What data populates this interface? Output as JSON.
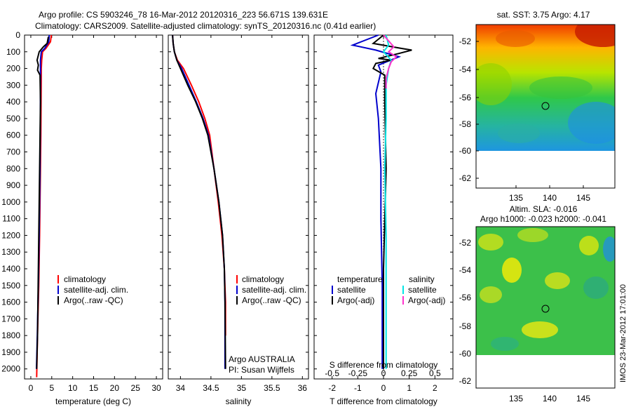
{
  "title_line1": "Argo profile: CS 5903246_78 16-Mar-2012 20120316_223 56.671S 139.631E",
  "title_line2": "Climatology: CARS2009. Satellite-adjusted climatology: synTS_20120316.nc (0.41d earlier)",
  "colors": {
    "climatology": "#ff0000",
    "satellite": "#0000cc",
    "argo": "#000000",
    "sat_salinity": "#00e5e5",
    "argo_salinity": "#ff33cc"
  },
  "chart_data": [
    {
      "type": "line",
      "xlabel": "temperature (deg C)",
      "ylabel": "",
      "xlim": [
        -1.5,
        31.5
      ],
      "ylim": [
        2060,
        0
      ],
      "xticks": [
        0,
        5,
        10,
        15,
        20,
        25,
        30
      ],
      "yticks": [
        0,
        100,
        200,
        300,
        400,
        500,
        600,
        700,
        800,
        900,
        1000,
        1100,
        1200,
        1300,
        1400,
        1500,
        1600,
        1700,
        1800,
        1900,
        2000
      ],
      "legend": [
        "climatology",
        "satellite-adj. clim.",
        "Argo(..raw -QC)"
      ],
      "series": [
        {
          "name": "climatology",
          "color_key": "climatology",
          "x": [
            4.9,
            4.7,
            3.6,
            2.8,
            2.6,
            2.5,
            2.5,
            2.45,
            2.4,
            2.3,
            2.2,
            2.1,
            1.9,
            1.6,
            1.4
          ],
          "y": [
            0,
            40,
            80,
            100,
            150,
            200,
            250,
            400,
            600,
            800,
            1000,
            1200,
            1500,
            1800,
            2050
          ]
        },
        {
          "name": "satellite-adj. clim.",
          "color_key": "satellite",
          "x": [
            4.4,
            4.3,
            3.3,
            2.5,
            2.3,
            2.3,
            2.3,
            2.3,
            2.25,
            2.2,
            2.1,
            2.0,
            1.8,
            1.55,
            1.35
          ],
          "y": [
            0,
            40,
            80,
            100,
            150,
            200,
            250,
            400,
            600,
            800,
            1000,
            1200,
            1500,
            1800,
            2000
          ]
        },
        {
          "name": "Argo(..raw -QC)",
          "color_key": "argo",
          "x": [
            4.2,
            3.9,
            3.0,
            2.0,
            1.5,
            1.8,
            1.6,
            2.2,
            2.3,
            2.2,
            2.1,
            2.0,
            1.8,
            1.6,
            1.4
          ],
          "y": [
            10,
            50,
            70,
            100,
            150,
            180,
            210,
            240,
            400,
            600,
            800,
            1000,
            1400,
            1800,
            2000
          ]
        }
      ]
    },
    {
      "type": "line",
      "xlabel": "salinity",
      "ylabel": "",
      "xlim": [
        33.8,
        36.1
      ],
      "ylim": [
        2060,
        0
      ],
      "xticks": [
        34,
        34.5,
        35,
        35.5,
        36
      ],
      "xticklabels": [
        "34",
        "34.5",
        "35",
        "35.5",
        "36"
      ],
      "legend": [
        "climatology",
        "satellite-adj. clim.",
        "Argo(..raw -QC)"
      ],
      "annotation_line1": "Argo AUSTRALIA",
      "annotation_line2": "PI: Susan Wijffels",
      "series": [
        {
          "name": "climatology",
          "color_key": "climatology",
          "x": [
            33.87,
            33.88,
            33.9,
            33.95,
            34.05,
            34.18,
            34.3,
            34.4,
            34.48,
            34.55,
            34.62,
            34.68,
            34.72,
            34.74,
            34.74
          ],
          "y": [
            0,
            50,
            100,
            150,
            200,
            300,
            400,
            500,
            600,
            800,
            1000,
            1200,
            1400,
            1600,
            1800
          ]
        },
        {
          "name": "satellite-adj. clim.",
          "color_key": "satellite",
          "x": [
            33.87,
            33.88,
            33.9,
            33.94,
            34.02,
            34.14,
            34.26,
            34.37,
            34.46,
            34.55,
            34.63,
            34.69,
            34.72,
            34.73,
            34.73
          ],
          "y": [
            0,
            50,
            100,
            150,
            200,
            300,
            400,
            500,
            600,
            800,
            1000,
            1200,
            1400,
            1600,
            2000
          ]
        },
        {
          "name": "Argo(..raw -QC)",
          "color_key": "argo",
          "x": [
            33.87,
            33.88,
            33.9,
            33.94,
            34.0,
            34.12,
            34.25,
            34.36,
            34.45,
            34.55,
            34.63,
            34.69,
            34.72,
            34.73,
            34.74
          ],
          "y": [
            0,
            50,
            100,
            150,
            200,
            300,
            400,
            500,
            600,
            800,
            1000,
            1200,
            1400,
            1600,
            2000
          ]
        }
      ]
    },
    {
      "type": "line",
      "xlabel": "T difference from climatology",
      "xlabel_top": "S difference from climatology",
      "xlim": [
        -2.7,
        2.7
      ],
      "ylim": [
        2060,
        0
      ],
      "xticks": [
        -2,
        -1,
        0,
        1,
        2
      ],
      "xticks_top": [
        -2,
        -1,
        0,
        1,
        2
      ],
      "xticklabels_top": [
        "-0.5",
        "-0.25",
        "0",
        "0.25",
        "0.5"
      ],
      "legend_left_title": "temperature",
      "legend_right_title": "salinity",
      "legend_left": [
        "satellite",
        "Argo(-adj)"
      ],
      "legend_right": [
        "satellite",
        "Argo(-adj)"
      ],
      "series": [
        {
          "name": "T satellite",
          "color_key": "satellite",
          "x": [
            -0.2,
            -1.2,
            -0.3,
            0.6,
            -0.2,
            -0.1,
            -0.3,
            -0.2,
            -0.1,
            -0.1,
            -0.05,
            -0.05,
            -0.05
          ],
          "y": [
            0,
            60,
            90,
            130,
            180,
            220,
            350,
            500,
            800,
            1100,
            1500,
            1800,
            2000
          ]
        },
        {
          "name": "T Argo(-adj)",
          "color_key": "argo",
          "x": [
            0.0,
            -0.4,
            0.7,
            1.1,
            0.6,
            -0.2,
            0.3,
            -0.3,
            -0.4,
            0.05,
            0.05,
            0.1,
            0.0,
            0.0
          ],
          "y": [
            0,
            50,
            80,
            90,
            110,
            140,
            150,
            170,
            200,
            240,
            400,
            800,
            1400,
            2000
          ]
        },
        {
          "name": "S satellite",
          "color_key": "sat_salinity",
          "x": [
            0.1,
            0.2,
            0.0,
            0.3,
            0.2,
            0.1,
            0.1,
            0.05,
            0.1,
            0.1,
            0.1
          ],
          "y": [
            0,
            60,
            100,
            150,
            200,
            300,
            500,
            800,
            1200,
            1600,
            2000
          ]
        },
        {
          "name": "S Argo(-adj)",
          "color_key": "argo_salinity",
          "x": [
            0.0,
            0.4,
            0.2,
            0.5,
            0.3,
            0.2,
            0.1,
            0.1
          ],
          "y": [
            0,
            70,
            100,
            130,
            160,
            200,
            260,
            320
          ]
        }
      ]
    }
  ],
  "map_top": {
    "title": "sat. SST: 3.75 Argo: 4.17",
    "xticks": [
      "135",
      "140",
      "145"
    ],
    "yticks": [
      "-52",
      "-54",
      "-56",
      "-58",
      "-60",
      "-62"
    ]
  },
  "map_bottom": {
    "title_line1": "Altim. SLA: -0.016",
    "title_line2": "Argo h1000: -0.023 h2000: -0.041",
    "xticks": [
      "135",
      "140",
      "145"
    ],
    "yticks": [
      "-52",
      "-54",
      "-56",
      "-58",
      "-60",
      "-62"
    ]
  },
  "credit": "IMOS 23-Mar-2012 17:01:00"
}
